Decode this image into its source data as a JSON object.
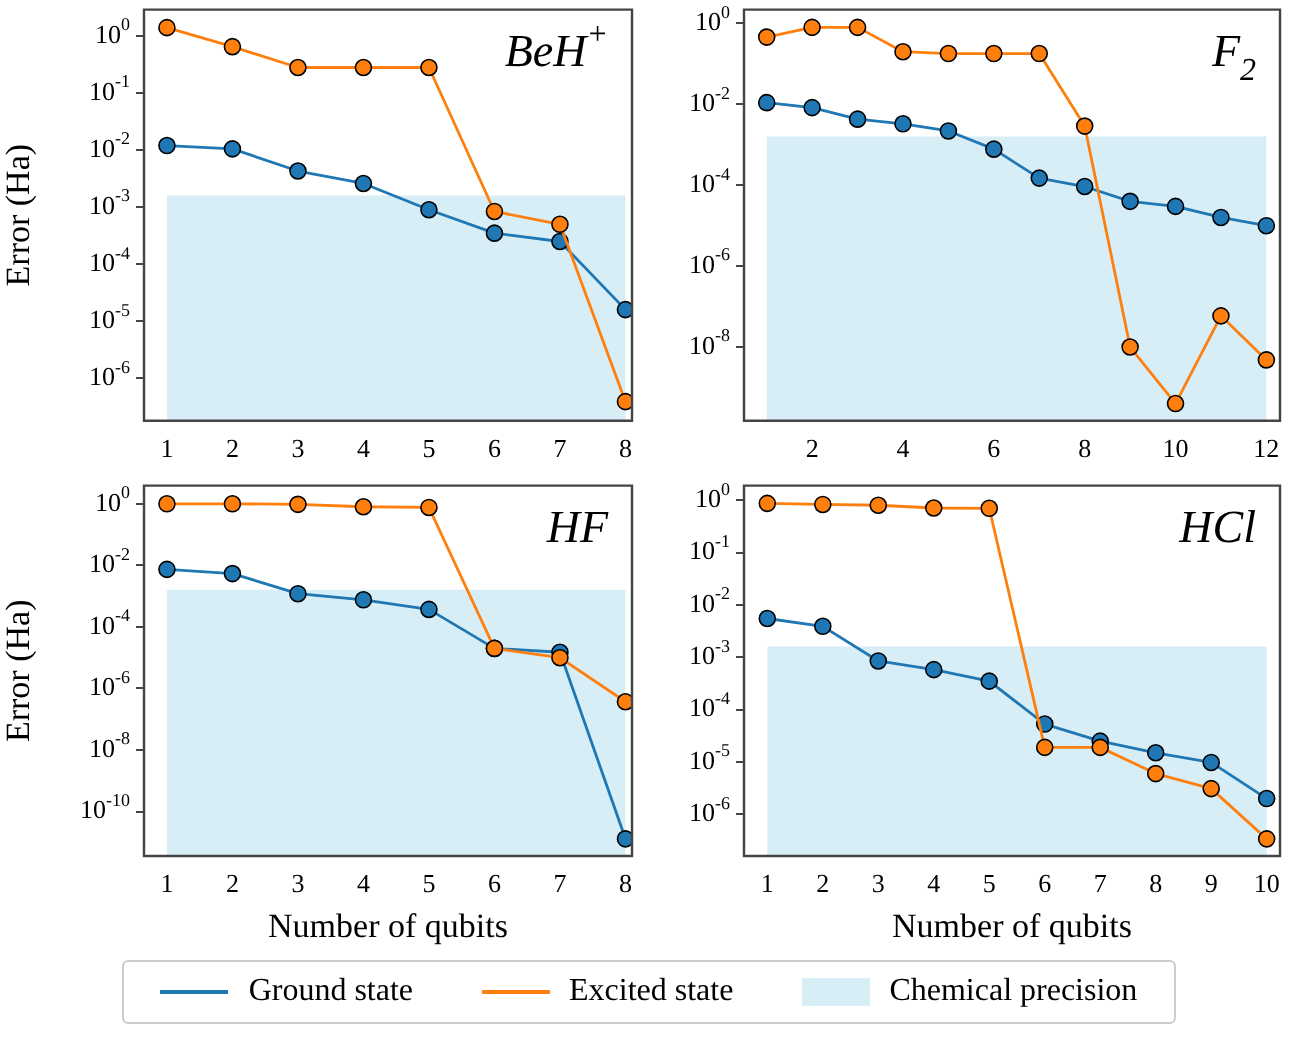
{
  "chart_data": [
    {
      "type": "line",
      "title": "BeH$^{+}$",
      "ylabel": "Error (Ha)",
      "x": [
        1,
        2,
        3,
        4,
        5,
        6,
        7,
        8
      ],
      "xlim": [
        0.65,
        8.1
      ],
      "xticks": [
        1,
        2,
        3,
        4,
        5,
        6,
        7,
        8
      ],
      "ylim": [
        1.8e-07,
        2.9
      ],
      "log": true,
      "marker": "circle",
      "legend": "bottom",
      "yticks": [
        {
          "value": 1,
          "label": "10$^{0}$"
        },
        {
          "value": 0.1,
          "label": "10$^{-1}$"
        },
        {
          "value": 0.01,
          "label": "10$^{-2}$"
        },
        {
          "value": 0.001,
          "label": "10$^{-3}$"
        },
        {
          "value": 0.0001,
          "label": "10$^{-4}$"
        },
        {
          "value": 1e-05,
          "label": "10$^{-5}$"
        },
        {
          "value": 1e-06,
          "label": "10$^{-6}$"
        }
      ],
      "series": [
        {
          "name": "Ground state",
          "color": "#1f77b4",
          "values": [
            0.012,
            0.0105,
            0.0043,
            0.0026,
            0.0009,
            0.00035,
            0.00025,
            1.6e-05
          ]
        },
        {
          "name": "Excited state",
          "color": "#ff7f0e",
          "values": [
            1.4,
            0.65,
            0.28,
            0.28,
            0.28,
            0.00084,
            0.0005,
            3.9e-07
          ]
        }
      ],
      "bands": [
        {
          "axis": "y",
          "from": 1.8e-07,
          "to": 0.0016,
          "label": "Chemical precision",
          "color": "#d8eef7"
        }
      ]
    },
    {
      "type": "line",
      "title": "F$_{2}$",
      "x": [
        1,
        2,
        3,
        4,
        5,
        6,
        7,
        8,
        9,
        10,
        11,
        12
      ],
      "xlim": [
        0.5,
        12.3
      ],
      "xticks": [
        2,
        4,
        6,
        8,
        10,
        12
      ],
      "ylim": [
        1.5e-10,
        2.2
      ],
      "log": true,
      "marker": "circle",
      "yticks": [
        {
          "value": 1,
          "label": "10$^{0}$"
        },
        {
          "value": 0.01,
          "label": "10$^{-2}$"
        },
        {
          "value": 0.0001,
          "label": "10$^{-4}$"
        },
        {
          "value": 1e-06,
          "label": "10$^{-6}$"
        },
        {
          "value": 1e-08,
          "label": "10$^{-8}$"
        }
      ],
      "series": [
        {
          "color": "#1f77b4",
          "values": [
            0.011,
            0.0083,
            0.0043,
            0.0033,
            0.0022,
            0.00078,
            0.00015,
            9.3e-05,
            4e-05,
            3e-05,
            1.6e-05,
            1e-05
          ]
        },
        {
          "color": "#ff7f0e",
          "values": [
            0.46,
            0.8,
            0.8,
            0.2,
            0.18,
            0.18,
            0.18,
            0.0029,
            1e-08,
            4e-10,
            5.9e-08,
            4.8e-09
          ]
        }
      ],
      "bands": [
        {
          "axis": "y",
          "from": 1.5e-10,
          "to": 0.0016,
          "color": "#d8eef7"
        }
      ]
    },
    {
      "type": "line",
      "title": "HF",
      "xlabel": "Number of qubits",
      "ylabel": "Error (Ha)",
      "x": [
        1,
        2,
        3,
        4,
        5,
        6,
        7,
        8
      ],
      "xlim": [
        0.65,
        8.1
      ],
      "xticks": [
        1,
        2,
        3,
        4,
        5,
        6,
        7,
        8
      ],
      "ylim": [
        3.6e-12,
        3.9
      ],
      "log": true,
      "marker": "circle",
      "yticks": [
        {
          "value": 1,
          "label": "10$^{0}$"
        },
        {
          "value": 0.01,
          "label": "10$^{-2}$"
        },
        {
          "value": 0.0001,
          "label": "10$^{-4}$"
        },
        {
          "value": 1e-06,
          "label": "10$^{-6}$"
        },
        {
          "value": 1e-08,
          "label": "10$^{-8}$"
        },
        {
          "value": 1e-10,
          "label": "10$^{-10}$"
        }
      ],
      "series": [
        {
          "color": "#1f77b4",
          "values": [
            0.0074,
            0.0054,
            0.0012,
            0.00076,
            0.00037,
            2e-05,
            1.5e-05,
            1.3e-11
          ]
        },
        {
          "color": "#ff7f0e",
          "values": [
            1.0,
            1.0,
            0.96,
            0.8,
            0.76,
            2e-05,
            1e-05,
            3.7e-07
          ]
        }
      ],
      "bands": [
        {
          "axis": "y",
          "from": 3.6e-12,
          "to": 0.0016,
          "color": "#d8eef7"
        }
      ]
    },
    {
      "type": "line",
      "title": "HCl",
      "xlabel": "Number of qubits",
      "x": [
        1,
        2,
        3,
        4,
        5,
        6,
        7,
        8,
        9,
        10
      ],
      "xlim": [
        0.58,
        10.24
      ],
      "xticks": [
        1,
        2,
        3,
        4,
        5,
        6,
        7,
        8,
        9,
        10
      ],
      "ylim": [
        1.6e-07,
        1.9
      ],
      "log": true,
      "marker": "circle",
      "yticks": [
        {
          "value": 1,
          "label": "10$^{0}$"
        },
        {
          "value": 0.1,
          "label": "10$^{-1}$"
        },
        {
          "value": 0.01,
          "label": "10$^{-2}$"
        },
        {
          "value": 0.001,
          "label": "10$^{-3}$"
        },
        {
          "value": 0.0001,
          "label": "10$^{-4}$"
        },
        {
          "value": 1e-05,
          "label": "10$^{-5}$"
        },
        {
          "value": 1e-06,
          "label": "10$^{-6}$"
        }
      ],
      "series": [
        {
          "color": "#1f77b4",
          "values": [
            0.0055,
            0.0039,
            0.00085,
            0.00058,
            0.00035,
            5.3e-05,
            2.5e-05,
            1.5e-05,
            9.8e-06,
            2e-06
          ]
        },
        {
          "color": "#ff7f0e",
          "values": [
            0.87,
            0.83,
            0.8,
            0.71,
            0.7,
            1.9e-05,
            1.9e-05,
            6e-06,
            3.1e-06,
            3.4e-07
          ]
        }
      ],
      "bands": [
        {
          "axis": "y",
          "from": 1.6e-07,
          "to": 0.0016,
          "color": "#d8eef7"
        }
      ]
    }
  ]
}
